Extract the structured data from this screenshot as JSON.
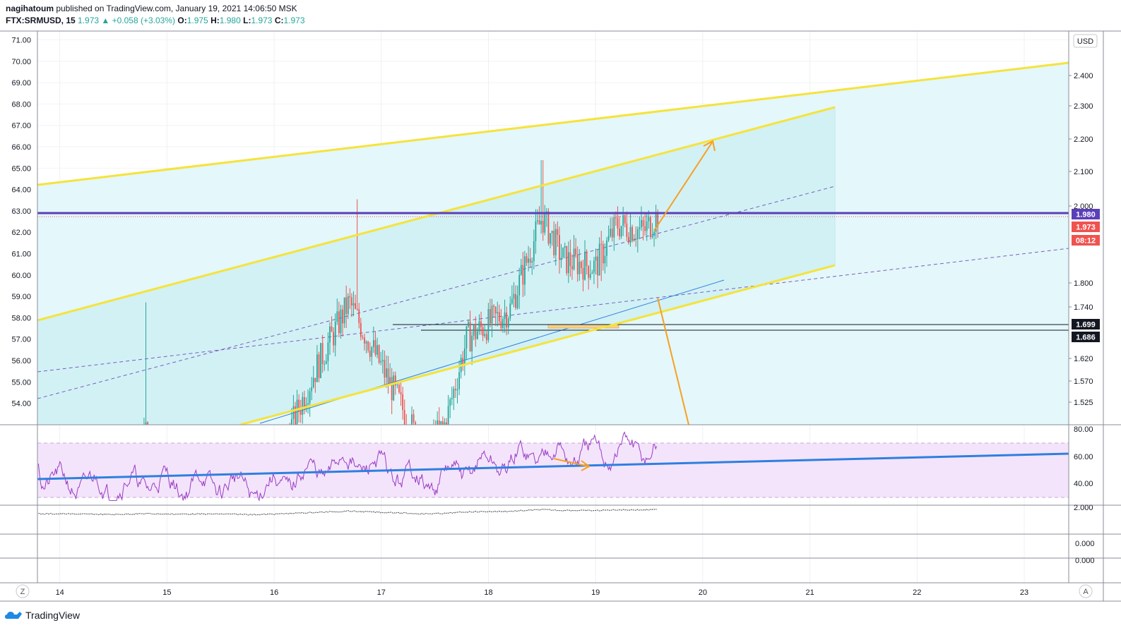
{
  "header": {
    "line1_user": "nagihatoum",
    "line1_rest": " published on TradingView.com, January 19, 2021 14:06:50 MSK",
    "symbol": "FTX:SRMUSD, 15",
    "last": "1.973",
    "change": "▲ +0.058 (+3.03%)",
    "o_label": "O:",
    "o_val": "1.975",
    "h_label": "H:",
    "h_val": "1.980",
    "l_label": "L:",
    "l_val": "1.973",
    "c_label": "C:",
    "c_val": "1.973"
  },
  "currency": "USD",
  "price_tags": {
    "high": "1.980",
    "last": "1.973",
    "countdown": "08:12",
    "level1": "1.699",
    "level2": "1.686"
  },
  "brand": "TradingView",
  "buttons": {
    "zoom": "Z",
    "auto": "A"
  },
  "colors": {
    "channel_line": "#f5e33b",
    "channel_fill": "#d3f3f7",
    "arrow": "#f7a021",
    "trend": "#2f7fe0",
    "midline": "#7c5dbf",
    "high_line": "#5b3fb8",
    "last_tag": "#ef5350",
    "rsi": "#9b3cc4",
    "up": "#26a69a",
    "down": "#ef5350"
  },
  "chart_data": {
    "type": "candlestick",
    "x_ticks": [
      "14",
      "15",
      "16",
      "17",
      "18",
      "19",
      "20",
      "21",
      "22",
      "23"
    ],
    "left_axis_ticks": [
      "71.00",
      "70.00",
      "69.00",
      "68.00",
      "67.00",
      "66.00",
      "65.00",
      "64.00",
      "63.00",
      "62.00",
      "61.00",
      "60.00",
      "59.00",
      "58.00",
      "57.00",
      "56.00",
      "55.00",
      "54.00"
    ],
    "right_axis_ticks": [
      "2.400",
      "2.300",
      "2.200",
      "2.100",
      "2.000",
      "1.800",
      "1.740",
      "1.620",
      "1.570",
      "1.525"
    ],
    "rsi_ticks": [
      "80.00",
      "60.00",
      "40.00"
    ],
    "pane3_ticks": [
      "2.000"
    ],
    "pane4_ticks": [
      "0.000"
    ],
    "pane5_ticks": [
      "0.000"
    ],
    "approx_close_path": [
      {
        "day": 14.0,
        "close": 1.64
      },
      {
        "day": 14.5,
        "close": 1.59
      },
      {
        "day": 14.8,
        "close": 1.66
      },
      {
        "day": 15.0,
        "close": 1.62
      },
      {
        "day": 15.5,
        "close": 1.63
      },
      {
        "day": 15.8,
        "close": 1.58
      },
      {
        "day": 16.0,
        "close": 1.62
      },
      {
        "day": 16.4,
        "close": 1.76
      },
      {
        "day": 16.7,
        "close": 1.85
      },
      {
        "day": 16.9,
        "close": 1.79
      },
      {
        "day": 17.1,
        "close": 1.73
      },
      {
        "day": 17.4,
        "close": 1.64
      },
      {
        "day": 17.6,
        "close": 1.68
      },
      {
        "day": 17.8,
        "close": 1.8
      },
      {
        "day": 18.2,
        "close": 1.84
      },
      {
        "day": 18.5,
        "close": 1.97
      },
      {
        "day": 18.7,
        "close": 1.91
      },
      {
        "day": 19.0,
        "close": 1.9
      },
      {
        "day": 19.2,
        "close": 1.96
      },
      {
        "day": 19.45,
        "close": 1.95
      },
      {
        "day": 19.58,
        "close": 1.973
      }
    ]
  }
}
